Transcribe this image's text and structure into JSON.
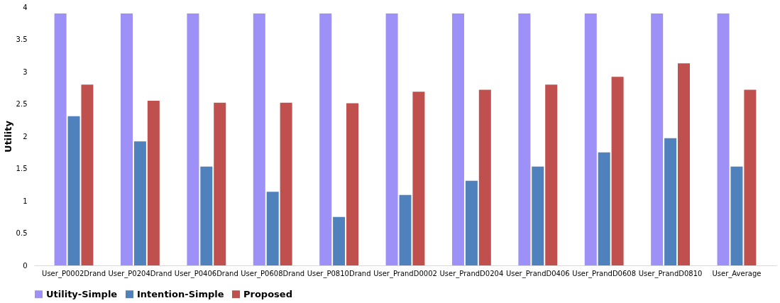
{
  "chart_data": {
    "type": "bar",
    "ylabel": "Utility",
    "categories": [
      "User_P0002Drand",
      "User_P0204Drand",
      "User_P0406Drand",
      "User_P0608Drand",
      "User_P0810Drand",
      "User_PrandD0002",
      "User_PrandD0204",
      "User_PrandD0406",
      "User_PrandD0608",
      "User_PrandD0810",
      "User_Average"
    ],
    "series": [
      {
        "name": "Utility-Simple",
        "color": "#9d90f6",
        "values": [
          3.9,
          3.9,
          3.9,
          3.9,
          3.9,
          3.9,
          3.9,
          3.9,
          3.9,
          3.9,
          3.9
        ]
      },
      {
        "name": "Intention-Simple",
        "color": "#4f81bd",
        "values": [
          2.31,
          1.92,
          1.53,
          1.14,
          0.75,
          1.09,
          1.31,
          1.53,
          1.75,
          1.97,
          1.53
        ]
      },
      {
        "name": "Proposed",
        "color": "#c0504d",
        "values": [
          2.8,
          2.55,
          2.52,
          2.52,
          2.51,
          2.69,
          2.72,
          2.8,
          2.92,
          3.13,
          2.72
        ]
      }
    ],
    "ylim": [
      0,
      4
    ],
    "yticks": [
      0,
      0.5,
      1,
      1.5,
      2,
      2.5,
      3,
      3.5,
      4
    ],
    "grid": false,
    "legend": "bottom"
  }
}
